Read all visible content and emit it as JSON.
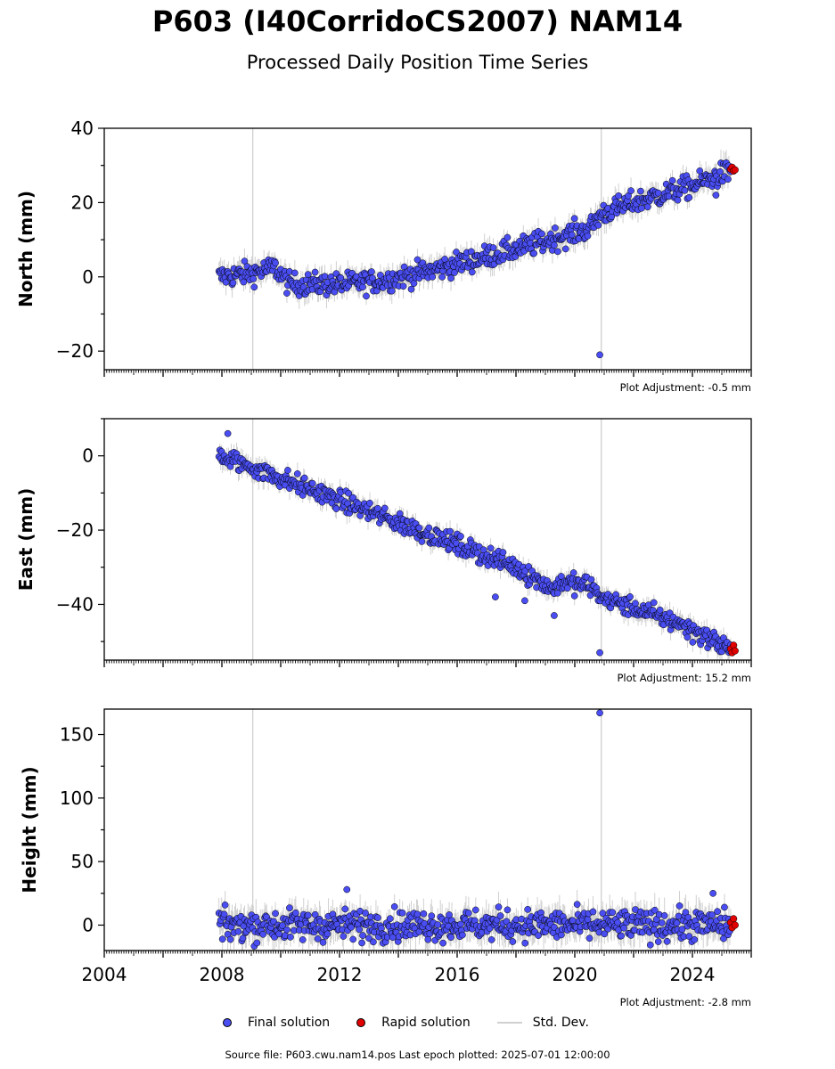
{
  "title": "P603 (I40CorridoCS2007) NAM14",
  "subtitle": "Processed Daily Position Time Series",
  "footer": "Source file: P603.cwu.nam14.pos  Last epoch plotted: 2025-07-01 12:00:00",
  "legend": {
    "final": "Final solution",
    "rapid": "Rapid solution",
    "std": "Std. Dev."
  },
  "colors": {
    "final": "#4a4ef2",
    "rapid": "#e00000",
    "std": "#d0d0d0",
    "edge": "#000000"
  },
  "chart_data": [
    {
      "type": "scatter",
      "ylabel": "North (mm)",
      "adjustment_label": "Plot Adjustment: -0.5 mm",
      "xlim": [
        2004,
        2026
      ],
      "ylim": [
        -25,
        40
      ],
      "yticks": [
        -20,
        0,
        20,
        40
      ],
      "x_tick_labels": [],
      "grid": false,
      "vlines": [
        2009.05,
        2020.9
      ],
      "series": [
        {
          "name": "Final solution",
          "trend": [
            [
              2007.9,
              0
            ],
            [
              2009.0,
              1
            ],
            [
              2009.8,
              2.5
            ],
            [
              2010.3,
              -2
            ],
            [
              2012.0,
              -2
            ],
            [
              2013.5,
              -1
            ],
            [
              2015.0,
              1.5
            ],
            [
              2017.0,
              5.5
            ],
            [
              2018.5,
              8.5
            ],
            [
              2020.5,
              13
            ],
            [
              2020.9,
              17
            ],
            [
              2022.0,
              20
            ],
            [
              2024.0,
              24.5
            ],
            [
              2025.3,
              28.5
            ]
          ],
          "scatter": 1.5,
          "outliers": [
            [
              2020.85,
              -21
            ],
            [
              2024.8,
              22
            ]
          ]
        },
        {
          "name": "Rapid solution",
          "x": [
            2025.3,
            2025.35,
            2025.4,
            2025.45
          ],
          "y": [
            29,
            29.5,
            28.5,
            28.8
          ]
        }
      ]
    },
    {
      "type": "scatter",
      "ylabel": "East (mm)",
      "adjustment_label": "Plot Adjustment: 15.2 mm",
      "xlim": [
        2004,
        2026
      ],
      "ylim": [
        -55,
        10
      ],
      "yticks": [
        -40,
        -20,
        0
      ],
      "x_tick_labels": [],
      "grid": false,
      "vlines": [
        2009.05,
        2020.9
      ],
      "series": [
        {
          "name": "Final solution",
          "trend": [
            [
              2007.9,
              0
            ],
            [
              2009.0,
              -3
            ],
            [
              2010.0,
              -6
            ],
            [
              2012.0,
              -12
            ],
            [
              2014.0,
              -18
            ],
            [
              2016.0,
              -24
            ],
            [
              2018.0,
              -30
            ],
            [
              2019.3,
              -36
            ],
            [
              2019.5,
              -34
            ],
            [
              2020.5,
              -35
            ],
            [
              2020.9,
              -38
            ],
            [
              2022.0,
              -41
            ],
            [
              2023.5,
              -45
            ],
            [
              2025.3,
              -52
            ]
          ],
          "scatter": 1.3,
          "outliers": [
            [
              2008.2,
              6
            ],
            [
              2020.85,
              -53
            ],
            [
              2019.3,
              -43
            ],
            [
              2017.3,
              -38
            ],
            [
              2018.3,
              -39
            ]
          ]
        },
        {
          "name": "Rapid solution",
          "x": [
            2025.3,
            2025.35,
            2025.4,
            2025.45
          ],
          "y": [
            -52,
            -53,
            -51,
            -52.5
          ]
        }
      ]
    },
    {
      "type": "scatter",
      "ylabel": "Height (mm)",
      "adjustment_label": "Plot Adjustment: -2.8 mm",
      "xlim": [
        2004,
        2026
      ],
      "ylim": [
        -20,
        170
      ],
      "yticks": [
        0,
        50,
        100,
        150
      ],
      "x_tick_labels": [
        "2004",
        "2008",
        "2012",
        "2016",
        "2020",
        "2024"
      ],
      "grid": false,
      "vlines": [
        2009.05,
        2020.9
      ],
      "series": [
        {
          "name": "Final solution",
          "trend": [
            [
              2007.9,
              0
            ],
            [
              2025.3,
              0
            ]
          ],
          "scatter": 6,
          "outliers": [
            [
              2020.85,
              167
            ],
            [
              2012.25,
              28
            ],
            [
              2024.7,
              25
            ]
          ]
        },
        {
          "name": "Rapid solution",
          "x": [
            2025.3,
            2025.35,
            2025.4,
            2025.45
          ],
          "y": [
            2,
            -2,
            5,
            0
          ]
        }
      ]
    }
  ]
}
